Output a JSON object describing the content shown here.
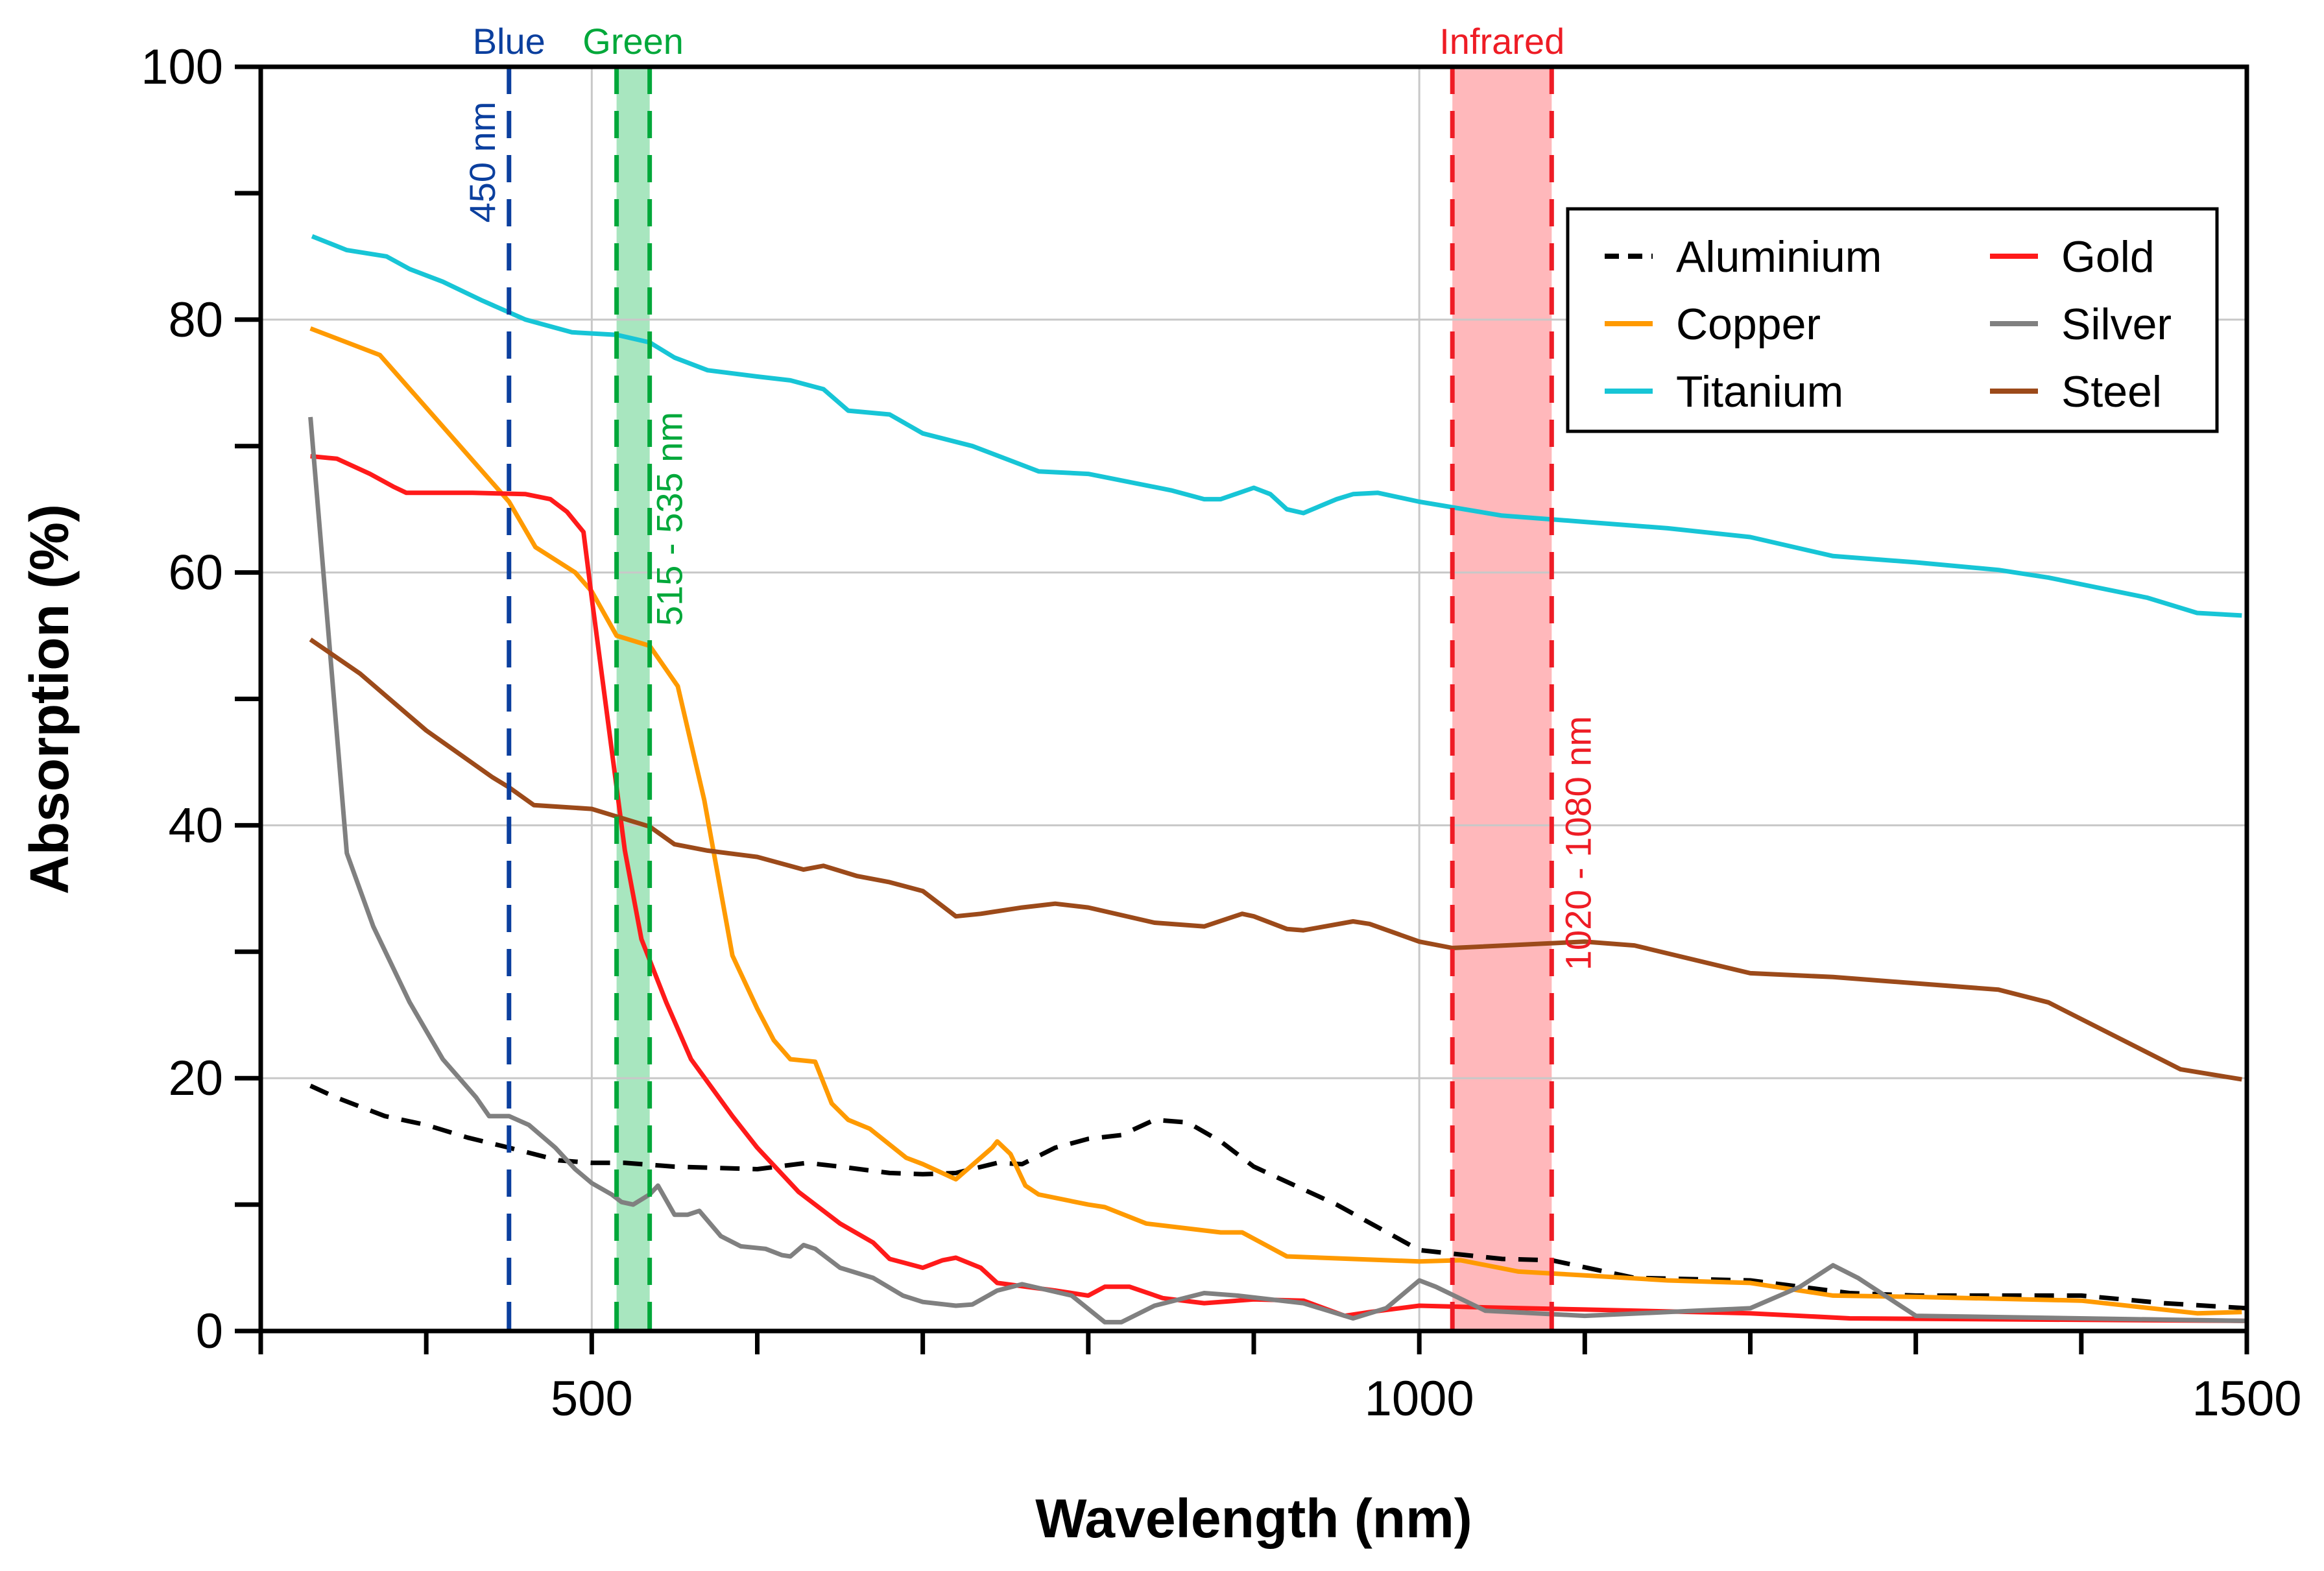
{
  "chart_data": {
    "type": "line",
    "title": "",
    "xlabel": "Wavelength (nm)",
    "ylabel": "Absorption (%)",
    "xlim": [
      300,
      1500
    ],
    "ylim": [
      0,
      100
    ],
    "xticks": [
      500,
      1000,
      1500
    ],
    "yticks": [
      0,
      20,
      40,
      60,
      80,
      100
    ],
    "grid": true,
    "legend_position": "top-right",
    "bands": [
      {
        "label": "Blue",
        "range_label": "450 nm",
        "from": 450,
        "to": 450,
        "color": "#0b3f9e",
        "fill": null
      },
      {
        "label": "Green",
        "range_label": "515 - 535 nm",
        "from": 515,
        "to": 535,
        "color": "#00a83a",
        "fill": "#a8e6bf"
      },
      {
        "label": "Infrared",
        "range_label": "1020 - 1080 nm",
        "from": 1020,
        "to": 1080,
        "color": "#ee1c25",
        "fill": "#ffb8bb"
      }
    ],
    "series": [
      {
        "name": "Aluminium",
        "color": "#000000",
        "dashed": true,
        "points": [
          [
            330,
            19.4
          ],
          [
            345,
            18.5
          ],
          [
            375,
            17
          ],
          [
            400,
            16.3
          ],
          [
            425,
            15.3
          ],
          [
            450,
            14.5
          ],
          [
            480,
            13.5
          ],
          [
            500,
            13.3
          ],
          [
            520,
            13.3
          ],
          [
            550,
            13
          ],
          [
            600,
            12.8
          ],
          [
            630,
            13.3
          ],
          [
            650,
            13
          ],
          [
            680,
            12.5
          ],
          [
            700,
            12.4
          ],
          [
            720,
            12.5
          ],
          [
            745,
            13.3
          ],
          [
            760,
            13.2
          ],
          [
            780,
            14.5
          ],
          [
            800,
            15.2
          ],
          [
            820,
            15.5
          ],
          [
            840,
            16.7
          ],
          [
            860,
            16.5
          ],
          [
            880,
            15
          ],
          [
            900,
            13
          ],
          [
            950,
            10
          ],
          [
            1000,
            6.4
          ],
          [
            1050,
            5.7
          ],
          [
            1080,
            5.6
          ],
          [
            1130,
            4.2
          ],
          [
            1200,
            4
          ],
          [
            1260,
            3
          ],
          [
            1300,
            2.8
          ],
          [
            1400,
            2.8
          ],
          [
            1450,
            2.2
          ],
          [
            1500,
            1.8
          ]
        ]
      },
      {
        "name": "Copper",
        "color": "#ff9a00",
        "dashed": false,
        "points": [
          [
            330,
            79.3
          ],
          [
            350,
            78.3
          ],
          [
            372,
            77.2
          ],
          [
            450,
            65.6
          ],
          [
            466,
            62
          ],
          [
            490,
            60
          ],
          [
            500,
            58.5
          ],
          [
            515,
            55
          ],
          [
            535,
            54.2
          ],
          [
            552,
            51
          ],
          [
            568,
            42
          ],
          [
            585,
            29.7
          ],
          [
            600,
            25.5
          ],
          [
            610,
            23
          ],
          [
            620,
            21.5
          ],
          [
            635,
            21.3
          ],
          [
            645,
            18
          ],
          [
            655,
            16.7
          ],
          [
            668,
            16
          ],
          [
            690,
            13.7
          ],
          [
            700,
            13.2
          ],
          [
            720,
            12
          ],
          [
            742,
            14.5
          ],
          [
            745,
            15
          ],
          [
            753,
            14
          ],
          [
            762,
            11.5
          ],
          [
            770,
            10.8
          ],
          [
            800,
            10
          ],
          [
            810,
            9.8
          ],
          [
            835,
            8.5
          ],
          [
            880,
            7.8
          ],
          [
            893,
            7.8
          ],
          [
            920,
            5.9
          ],
          [
            1000,
            5.5
          ],
          [
            1025,
            5.6
          ],
          [
            1060,
            4.7
          ],
          [
            1100,
            4.4
          ],
          [
            1150,
            4
          ],
          [
            1200,
            3.8
          ],
          [
            1250,
            2.8
          ],
          [
            1300,
            2.7
          ],
          [
            1400,
            2.4
          ],
          [
            1470,
            1.4
          ],
          [
            1497,
            1.5
          ]
        ]
      },
      {
        "name": "Titanium",
        "color": "#17c5d6",
        "dashed": false,
        "points": [
          [
            331,
            86.6
          ],
          [
            352,
            85.5
          ],
          [
            376,
            85
          ],
          [
            390,
            84
          ],
          [
            410,
            83
          ],
          [
            434,
            81.5
          ],
          [
            460,
            80
          ],
          [
            488,
            79
          ],
          [
            515,
            78.8
          ],
          [
            535,
            78.2
          ],
          [
            550,
            77
          ],
          [
            570,
            76
          ],
          [
            600,
            75.5
          ],
          [
            620,
            75.2
          ],
          [
            640,
            74.5
          ],
          [
            655,
            72.8
          ],
          [
            680,
            72.5
          ],
          [
            700,
            71
          ],
          [
            730,
            70
          ],
          [
            760,
            68.5
          ],
          [
            770,
            68
          ],
          [
            800,
            67.8
          ],
          [
            850,
            66.5
          ],
          [
            870,
            65.8
          ],
          [
            880,
            65.8
          ],
          [
            900,
            66.7
          ],
          [
            910,
            66.2
          ],
          [
            920,
            65
          ],
          [
            930,
            64.7
          ],
          [
            950,
            65.8
          ],
          [
            960,
            66.2
          ],
          [
            975,
            66.3
          ],
          [
            1000,
            65.6
          ],
          [
            1050,
            64.5
          ],
          [
            1100,
            64
          ],
          [
            1150,
            63.5
          ],
          [
            1200,
            62.8
          ],
          [
            1250,
            61.3
          ],
          [
            1300,
            60.8
          ],
          [
            1350,
            60.2
          ],
          [
            1380,
            59.6
          ],
          [
            1440,
            58
          ],
          [
            1470,
            56.8
          ],
          [
            1497,
            56.6
          ]
        ]
      },
      {
        "name": "Gold",
        "color": "#ff1a1a",
        "dashed": false,
        "points": [
          [
            330,
            69.2
          ],
          [
            346,
            69
          ],
          [
            366,
            67.8
          ],
          [
            380,
            66.8
          ],
          [
            388,
            66.3
          ],
          [
            428,
            66.3
          ],
          [
            460,
            66.2
          ],
          [
            475,
            65.8
          ],
          [
            485,
            64.8
          ],
          [
            495,
            63.2
          ],
          [
            500,
            58
          ],
          [
            510,
            48
          ],
          [
            520,
            38
          ],
          [
            530,
            31
          ],
          [
            545,
            26
          ],
          [
            560,
            21.5
          ],
          [
            585,
            17
          ],
          [
            600,
            14.5
          ],
          [
            625,
            11
          ],
          [
            650,
            8.5
          ],
          [
            670,
            7
          ],
          [
            680,
            5.7
          ],
          [
            700,
            5
          ],
          [
            712,
            5.6
          ],
          [
            720,
            5.8
          ],
          [
            735,
            5
          ],
          [
            745,
            3.8
          ],
          [
            780,
            3.2
          ],
          [
            800,
            2.8
          ],
          [
            810,
            3.5
          ],
          [
            825,
            3.5
          ],
          [
            845,
            2.6
          ],
          [
            870,
            2.2
          ],
          [
            900,
            2.5
          ],
          [
            930,
            2.4
          ],
          [
            955,
            1.2
          ],
          [
            970,
            1.5
          ],
          [
            1000,
            2
          ],
          [
            1030,
            1.9
          ],
          [
            1100,
            1.7
          ],
          [
            1200,
            1.4
          ],
          [
            1260,
            1
          ],
          [
            1500,
            0.8
          ]
        ]
      },
      {
        "name": "Silver",
        "color": "#808080",
        "dashed": false,
        "points": [
          [
            330,
            72.3
          ],
          [
            352,
            37.8
          ],
          [
            368,
            32
          ],
          [
            390,
            26
          ],
          [
            410,
            21.5
          ],
          [
            430,
            18.5
          ],
          [
            438,
            17
          ],
          [
            450,
            17
          ],
          [
            462,
            16.3
          ],
          [
            478,
            14.5
          ],
          [
            490,
            12.8
          ],
          [
            500,
            11.7
          ],
          [
            512,
            10.8
          ],
          [
            518,
            10.2
          ],
          [
            525,
            10
          ],
          [
            535,
            10.8
          ],
          [
            540,
            11.5
          ],
          [
            550,
            9.2
          ],
          [
            558,
            9.2
          ],
          [
            565,
            9.5
          ],
          [
            578,
            7.5
          ],
          [
            590,
            6.7
          ],
          [
            605,
            6.5
          ],
          [
            615,
            6
          ],
          [
            620,
            5.9
          ],
          [
            628,
            6.8
          ],
          [
            635,
            6.5
          ],
          [
            650,
            5
          ],
          [
            670,
            4.2
          ],
          [
            688,
            2.8
          ],
          [
            700,
            2.3
          ],
          [
            720,
            2
          ],
          [
            730,
            2.1
          ],
          [
            745,
            3.2
          ],
          [
            760,
            3.7
          ],
          [
            790,
            2.8
          ],
          [
            810,
            0.7
          ],
          [
            820,
            0.7
          ],
          [
            840,
            2
          ],
          [
            870,
            3
          ],
          [
            890,
            2.8
          ],
          [
            930,
            2.2
          ],
          [
            960,
            1
          ],
          [
            980,
            1.8
          ],
          [
            1000,
            4
          ],
          [
            1010,
            3.5
          ],
          [
            1040,
            1.6
          ],
          [
            1100,
            1.2
          ],
          [
            1150,
            1.5
          ],
          [
            1200,
            1.8
          ],
          [
            1230,
            3.5
          ],
          [
            1250,
            5.2
          ],
          [
            1265,
            4.2
          ],
          [
            1300,
            1.2
          ],
          [
            1500,
            0.8
          ]
        ]
      },
      {
        "name": "Steel",
        "color": "#9c4a1a",
        "dashed": false,
        "points": [
          [
            330,
            54.7
          ],
          [
            360,
            52
          ],
          [
            400,
            47.5
          ],
          [
            440,
            43.8
          ],
          [
            450,
            43
          ],
          [
            465,
            41.6
          ],
          [
            500,
            41.3
          ],
          [
            520,
            40.5
          ],
          [
            535,
            39.9
          ],
          [
            550,
            38.5
          ],
          [
            570,
            38
          ],
          [
            600,
            37.5
          ],
          [
            628,
            36.5
          ],
          [
            640,
            36.8
          ],
          [
            660,
            36
          ],
          [
            680,
            35.5
          ],
          [
            700,
            34.8
          ],
          [
            720,
            32.8
          ],
          [
            735,
            33
          ],
          [
            760,
            33.5
          ],
          [
            780,
            33.8
          ],
          [
            800,
            33.5
          ],
          [
            840,
            32.3
          ],
          [
            870,
            32
          ],
          [
            893,
            33
          ],
          [
            900,
            32.8
          ],
          [
            920,
            31.8
          ],
          [
            930,
            31.7
          ],
          [
            960,
            32.4
          ],
          [
            970,
            32.2
          ],
          [
            1000,
            30.8
          ],
          [
            1020,
            30.3
          ],
          [
            1100,
            30.8
          ],
          [
            1130,
            30.5
          ],
          [
            1200,
            28.3
          ],
          [
            1250,
            28
          ],
          [
            1300,
            27.5
          ],
          [
            1350,
            27
          ],
          [
            1380,
            26
          ],
          [
            1460,
            20.7
          ],
          [
            1497,
            19.9
          ]
        ]
      }
    ]
  }
}
